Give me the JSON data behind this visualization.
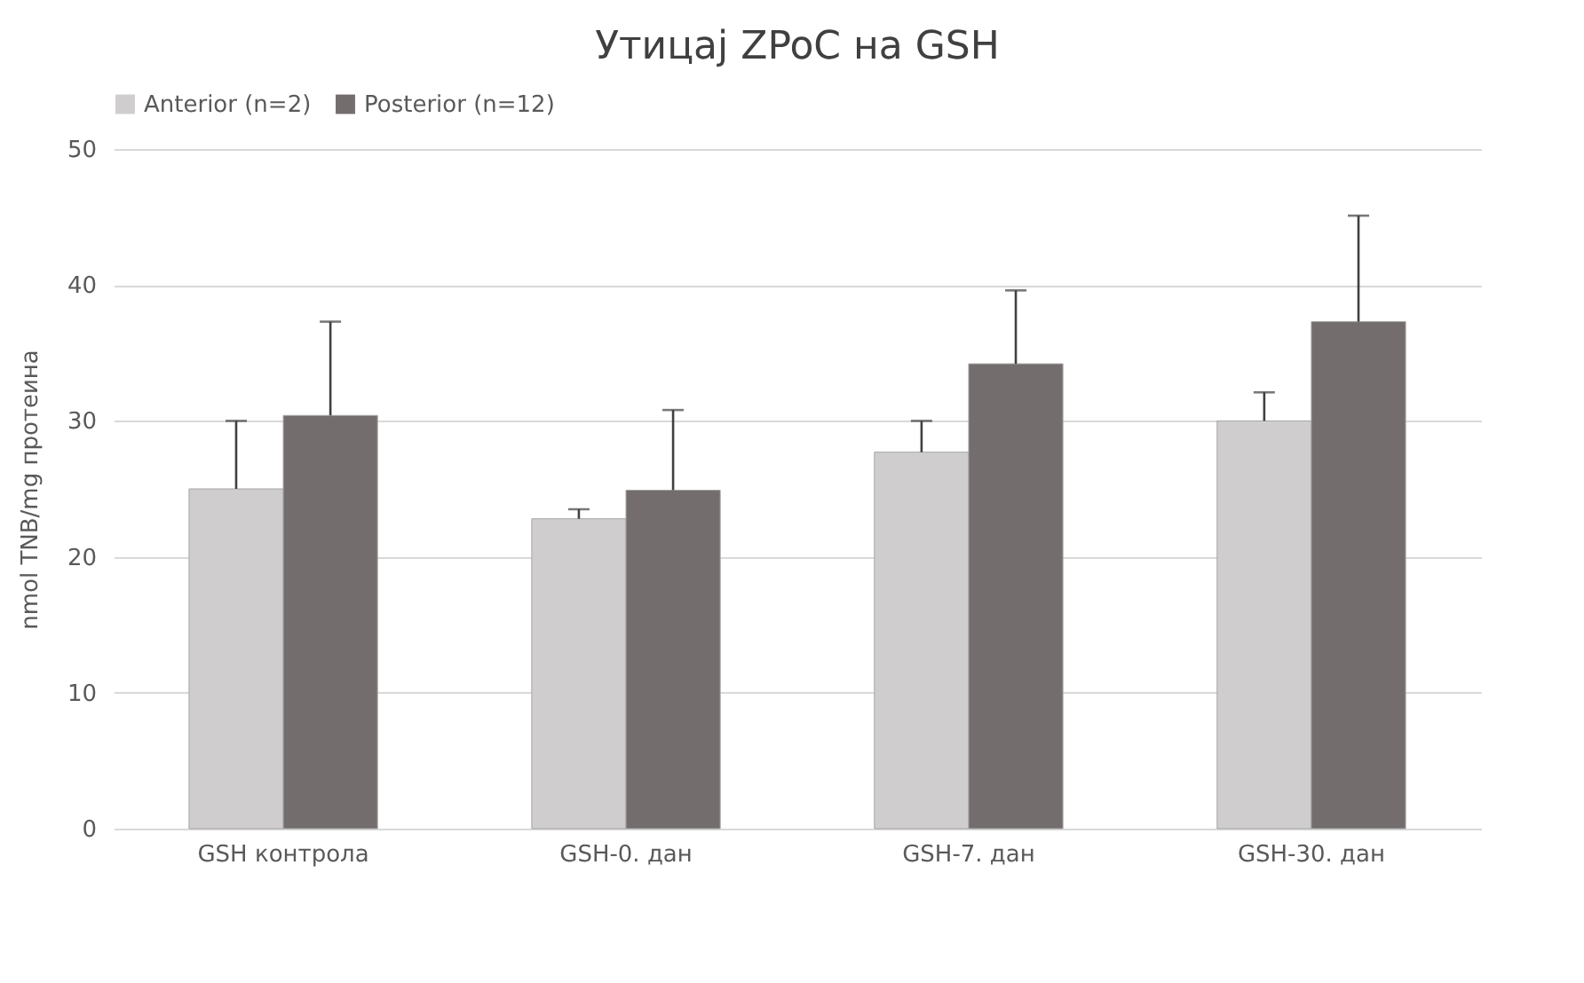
{
  "chart_data": {
    "type": "bar",
    "title": "Утицај ZPoC на GSH",
    "ylabel": "nmol TNB/mg  протеина",
    "categories": [
      "GSH контрола",
      "GSH-0. дан",
      "GSH-7. дан",
      "GSH-30. дан"
    ],
    "series": [
      {
        "name": "Anterior (n=2)",
        "color": "#cfcdcd",
        "values": [
          25.0,
          22.8,
          27.7,
          30.0
        ],
        "errors": [
          [
            25.0,
            30.0
          ],
          [
            22.8,
            23.5
          ],
          [
            27.7,
            30.0
          ],
          [
            30.0,
            32.1
          ]
        ]
      },
      {
        "name": "Posterior (n=12)",
        "color": "#736d6d",
        "values": [
          30.4,
          24.9,
          34.2,
          37.3
        ],
        "errors": [
          [
            30.4,
            37.3
          ],
          [
            24.9,
            30.8
          ],
          [
            34.2,
            39.6
          ],
          [
            37.3,
            45.1
          ]
        ]
      }
    ],
    "ylim": [
      0,
      50
    ],
    "yticks": [
      0,
      10,
      20,
      30,
      40,
      50
    ],
    "grid": "y",
    "legend": "top"
  }
}
